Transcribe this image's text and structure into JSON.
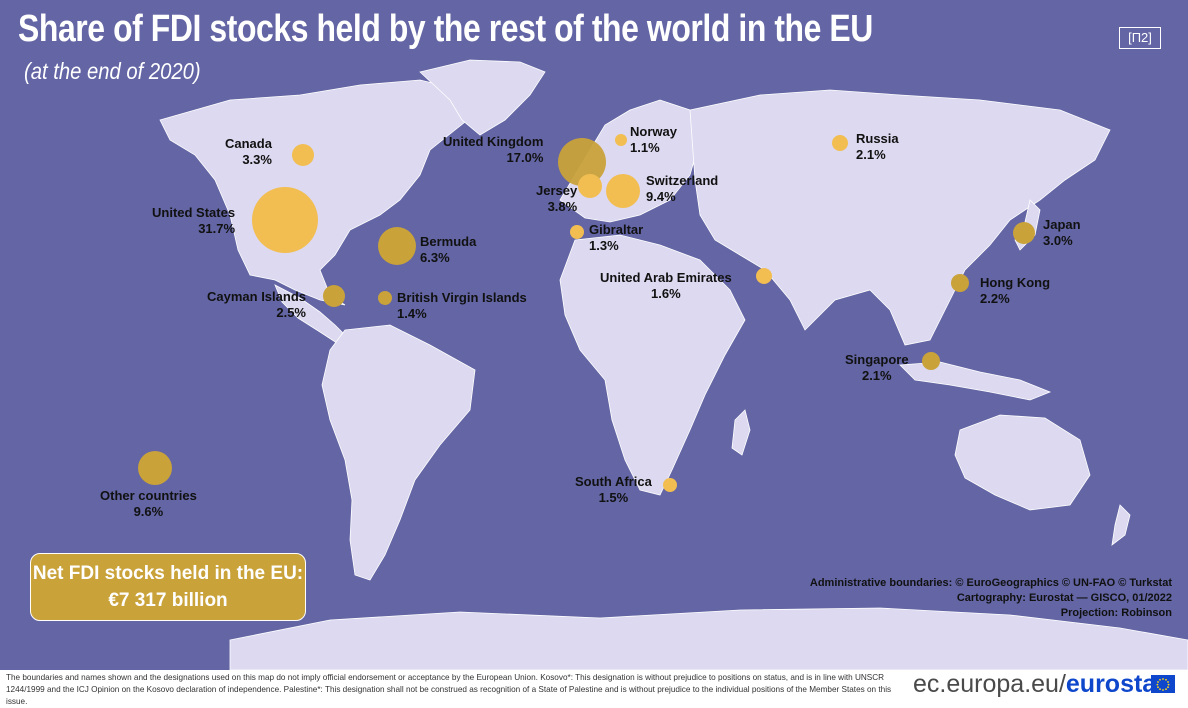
{
  "title": "Share of FDI stocks held by the rest of the world in the EU",
  "subtitle": "(at the end of 2020)",
  "map_code": "[П2]",
  "colors": {
    "ocean": "#6365a4",
    "land": "#dcd9f0",
    "bubble_light": "#f2be52",
    "bubble_dark": "#c9a23a",
    "text": "#111111"
  },
  "locations": [
    {
      "name": "United States",
      "share": "31.7%"
    },
    {
      "name": "United Kingdom",
      "share": "17.0%"
    },
    {
      "name": "Other countries",
      "share": "9.6%"
    },
    {
      "name": "Switzerland",
      "share": "9.4%"
    },
    {
      "name": "Bermuda",
      "share": "6.3%"
    },
    {
      "name": "Jersey",
      "share": "3.8%"
    },
    {
      "name": "Canada",
      "share": "3.3%"
    },
    {
      "name": "Japan",
      "share": "3.0%"
    },
    {
      "name": "Cayman Islands",
      "share": "2.5%"
    },
    {
      "name": "Hong Kong",
      "share": "2.2%"
    },
    {
      "name": "Russia",
      "share": "2.1%"
    },
    {
      "name": "Singapore",
      "share": "2.1%"
    },
    {
      "name": "United Arab Emirates",
      "share": "1.6%"
    },
    {
      "name": "South Africa",
      "share": "1.5%"
    },
    {
      "name": "British Virgin Islands",
      "share": "1.4%"
    },
    {
      "name": "Gibraltar",
      "share": "1.3%"
    },
    {
      "name": "Norway",
      "share": "1.1%"
    }
  ],
  "total": {
    "label": "Net FDI stocks held in the EU:",
    "value": "€7 317  billion"
  },
  "credits": {
    "line1": "Administrative boundaries: © EuroGeographics © UN-FAO © Turkstat",
    "line2": "Cartography: Eurostat — GISCO, 01/2022",
    "line3": "Projection: Robinson"
  },
  "disclaimer": "The boundaries and names shown and the designations used on this map do not imply official endorsement or acceptance by the European Union. Kosovo*: This designation is without prejudice to positions on status, and is in line with UNSCR 1244/1999 and the ICJ Opinion on the Kosovo declaration of independence. Palestine*: This designation shall not be construed as recognition of a State of Palestine and is without prejudice to the individual positions of the Member States on this issue.",
  "brand": {
    "prefix": "ec.europa.eu/",
    "name": "eurostat"
  }
}
